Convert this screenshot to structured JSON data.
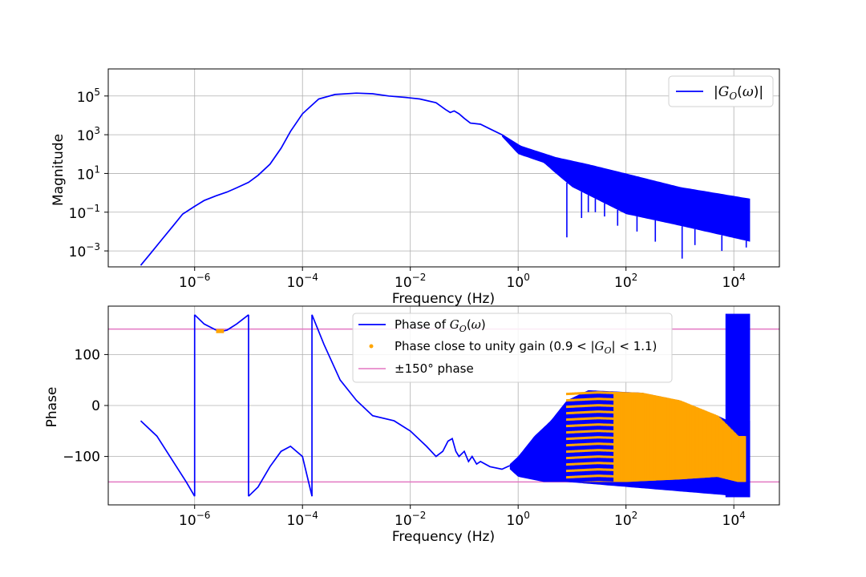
{
  "chart_data": [
    {
      "type": "line",
      "xscale": "log",
      "yscale": "log",
      "xlim": [
        2.5e-08,
        70000.0
      ],
      "ylim": [
        0.00015,
        2500000
      ],
      "grid": true,
      "xlabel": "Frequency (Hz)",
      "ylabel": "Magnitude",
      "x_ticks": [
        {
          "base": "10",
          "exp": "−6",
          "value": 1e-06
        },
        {
          "base": "10",
          "exp": "−4",
          "value": 0.0001
        },
        {
          "base": "10",
          "exp": "−2",
          "value": 0.01
        },
        {
          "base": "10",
          "exp": "0",
          "value": 1
        },
        {
          "base": "10",
          "exp": "2",
          "value": 100
        },
        {
          "base": "10",
          "exp": "4",
          "value": 10000
        }
      ],
      "y_ticks": [
        {
          "base": "10",
          "exp": "−3",
          "value": 0.001
        },
        {
          "base": "10",
          "exp": "−1",
          "value": 0.1
        },
        {
          "base": "10",
          "exp": "1",
          "value": 10
        },
        {
          "base": "10",
          "exp": "3",
          "value": 1000
        },
        {
          "base": "10",
          "exp": "5",
          "value": 100000
        }
      ],
      "legend": {
        "placement": "top-right",
        "entries": [
          {
            "label": "|G_O(ω)|",
            "color": "#0000ff"
          }
        ]
      },
      "series": [
        {
          "color": "#0000ff",
          "x": [
            1e-07,
            1.5e-07,
            2.5e-07,
            4e-07,
            6e-07,
            1e-06,
            1.5e-06,
            2.5e-06,
            4e-06,
            6e-06,
            1e-05,
            1.5e-05,
            2.5e-05,
            4e-05,
            6e-05,
            0.0001,
            0.0002,
            0.0004,
            0.001,
            0.002,
            0.004,
            0.008,
            0.015,
            0.03,
            0.045,
            0.055,
            0.065,
            0.08,
            0.1,
            0.13,
            0.2,
            0.3,
            0.5,
            1,
            2,
            4,
            8
          ],
          "y": [
            0.00018,
            0.0007,
            0.004,
            0.02,
            0.08,
            0.2,
            0.4,
            0.7,
            1.1,
            1.8,
            3.5,
            8,
            30,
            200,
            1500,
            12000,
            70000,
            120000,
            140000,
            130000,
            100000,
            85000,
            70000,
            45000,
            20000,
            14000,
            17000,
            12000,
            7000,
            4000,
            3500,
            2000,
            1000,
            300,
            100,
            50,
            30
          ]
        }
      ],
      "oscillation_band": {
        "x_range": [
          0.5,
          20000
        ],
        "upper_y": [
          [
            0.5,
            1000
          ],
          [
            1,
            300
          ],
          [
            5,
            70
          ],
          [
            20,
            30
          ],
          [
            100,
            10
          ],
          [
            1000,
            2
          ],
          [
            20000,
            0.5
          ]
        ],
        "lower_y": [
          [
            0.5,
            800
          ],
          [
            1,
            100
          ],
          [
            3,
            35
          ],
          [
            5,
            10
          ],
          [
            10,
            2
          ],
          [
            100,
            0.08
          ],
          [
            1000,
            0.02
          ],
          [
            20000,
            0.003
          ]
        ],
        "dips": [
          [
            8,
            0.005
          ],
          [
            15,
            0.05
          ],
          [
            20,
            0.1
          ],
          [
            27,
            0.1
          ],
          [
            40,
            0.06
          ],
          [
            70,
            0.02
          ],
          [
            160,
            0.01
          ],
          [
            350,
            0.003
          ],
          [
            1100,
            0.0004
          ],
          [
            1900,
            0.002
          ],
          [
            6000,
            0.001
          ],
          [
            17000,
            0.0015
          ]
        ]
      }
    },
    {
      "type": "line",
      "xscale": "log",
      "yscale": "linear",
      "xlim": [
        2.5e-08,
        70000.0
      ],
      "ylim": [
        -195,
        195
      ],
      "grid": true,
      "xlabel": "Frequency (Hz)",
      "ylabel": "Phase",
      "x_ticks": [
        {
          "base": "10",
          "exp": "−6",
          "value": 1e-06
        },
        {
          "base": "10",
          "exp": "−4",
          "value": 0.0001
        },
        {
          "base": "10",
          "exp": "−2",
          "value": 0.01
        },
        {
          "base": "10",
          "exp": "0",
          "value": 1
        },
        {
          "base": "10",
          "exp": "2",
          "value": 100
        },
        {
          "base": "10",
          "exp": "4",
          "value": 10000
        }
      ],
      "y_ticks": [
        {
          "label": "−100",
          "value": -100
        },
        {
          "label": "0",
          "value": 0
        },
        {
          "label": "100",
          "value": 100
        }
      ],
      "legend": {
        "placement": "upper-center",
        "entries": [
          {
            "label": "Phase of G_O(ω)",
            "color": "#0000ff",
            "marker": "line"
          },
          {
            "label": "Phase close to unity gain (0.9 < |G_O| < 1.1)",
            "color": "#ffa500",
            "marker": "dot"
          },
          {
            "label": "±150° phase",
            "color": "#e377c2",
            "marker": "line"
          }
        ]
      },
      "hlines": [
        150,
        -150
      ],
      "series": [
        {
          "name": "Phase of G_O(ω)",
          "color": "#0000ff",
          "segments": [
            {
              "x": [
                1e-07,
                2e-07,
                4e-07,
                7e-07,
                1e-06
              ],
              "y": [
                -30,
                -60,
                -110,
                -150,
                -178
              ]
            },
            {
              "x": [
                1e-06,
                1.5e-06,
                2.5e-06,
                3e-06,
                4e-06,
                6e-06,
                1e-05
              ],
              "y": [
                178,
                160,
                148,
                145,
                148,
                160,
                178
              ]
            },
            {
              "x": [
                1e-05,
                1.5e-05,
                2.5e-05,
                4e-05,
                6e-05,
                0.0001,
                0.00015
              ],
              "y": [
                -178,
                -160,
                -120,
                -90,
                -80,
                -100,
                -178
              ]
            },
            {
              "x": [
                0.00015,
                0.00025,
                0.0005,
                0.001,
                0.002,
                0.005,
                0.01,
                0.02,
                0.03,
                0.04,
                0.05,
                0.06,
                0.07,
                0.08,
                0.1,
                0.12,
                0.14,
                0.17,
                0.2,
                0.3,
                0.5,
                0.7
              ],
              "y": [
                178,
                120,
                50,
                10,
                -20,
                -30,
                -50,
                -80,
                -100,
                -90,
                -70,
                -65,
                -90,
                -100,
                -90,
                -110,
                -100,
                -115,
                -110,
                -120,
                -125,
                -118
              ]
            }
          ]
        },
        {
          "name": "Phase close to unity gain",
          "color": "#ffa500",
          "cluster_low_freq": {
            "x_range": [
              2.5e-06,
              3.5e-06
            ],
            "y": 146
          }
        }
      ],
      "oscillation_band": {
        "x_range": [
          0.7,
          20000
        ],
        "upper_y": [
          [
            0.7,
            -115
          ],
          [
            1,
            -100
          ],
          [
            2,
            -60
          ],
          [
            4,
            -30
          ],
          [
            8,
            10
          ],
          [
            20,
            30
          ],
          [
            200,
            25
          ],
          [
            1000,
            10
          ],
          [
            5000,
            -20
          ],
          [
            8000,
            -30
          ]
        ],
        "lower_y": [
          [
            0.7,
            -125
          ],
          [
            1,
            -140
          ],
          [
            3,
            -150
          ],
          [
            8,
            -150
          ],
          [
            20000,
            -180
          ]
        ],
        "spike_region": {
          "x_range": [
            7000,
            20000
          ],
          "y_range": [
            -180,
            180
          ]
        }
      },
      "unity_band": {
        "x_range": [
          8,
          16000
        ],
        "upper_y": [
          [
            8,
            25
          ],
          [
            30,
            28
          ],
          [
            200,
            25
          ],
          [
            1000,
            10
          ],
          [
            5000,
            -20
          ],
          [
            12000,
            -60
          ]
        ],
        "lower_y": [
          [
            8,
            -150
          ],
          [
            100,
            -150
          ],
          [
            1000,
            -145
          ],
          [
            5000,
            -140
          ],
          [
            12000,
            -150
          ]
        ]
      }
    }
  ]
}
